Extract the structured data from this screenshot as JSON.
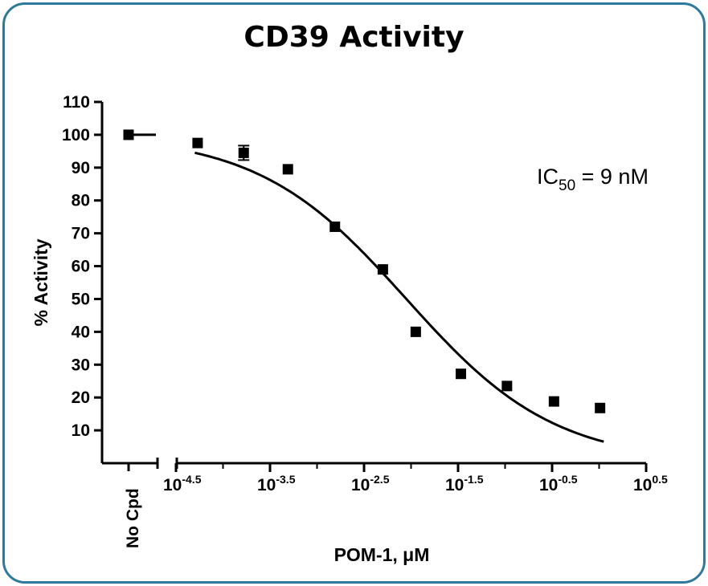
{
  "chart_data": {
    "type": "scatter",
    "title": "CD39 Activity",
    "xlabel": "POM-1, μM",
    "ylabel": "% Activity",
    "xscale": "log10",
    "xlim_log10": [
      -4.5,
      0.5
    ],
    "ylim": [
      0,
      110
    ],
    "yticks": [
      10,
      20,
      30,
      40,
      50,
      60,
      70,
      80,
      90,
      100,
      110
    ],
    "xticks": [
      {
        "base": "10",
        "exp": "-4.5"
      },
      {
        "base": "10",
        "exp": "-3.5"
      },
      {
        "base": "10",
        "exp": "-2.5"
      },
      {
        "base": "10",
        "exp": "-1.5"
      },
      {
        "base": "10",
        "exp": "-0.5"
      },
      {
        "base": "10",
        "exp": "0.5"
      }
    ],
    "control": {
      "label": "No Cpd",
      "value": 100
    },
    "series": [
      {
        "name": "POM-1",
        "log10_x": [
          -4.27,
          -3.78,
          -3.31,
          -2.81,
          -2.3,
          -1.95,
          -1.47,
          -0.98,
          -0.48,
          0.01
        ],
        "y": [
          97.5,
          94.5,
          89.5,
          72,
          59,
          40,
          27.2,
          23.5,
          18.8,
          16.8
        ],
        "yerr": [
          0,
          2.2,
          0,
          0,
          0,
          0,
          0,
          0,
          0,
          0
        ]
      }
    ],
    "fit": {
      "model": "sigmoidal dose-response",
      "top": 100,
      "bottom": 0,
      "log10_ic50": -2.05,
      "hill_slope": 0.55,
      "log10_range": [
        -4.3,
        0.05
      ]
    },
    "annotation": {
      "prefix": "IC",
      "sub": "50",
      "suffix": " = 9 nM"
    }
  }
}
